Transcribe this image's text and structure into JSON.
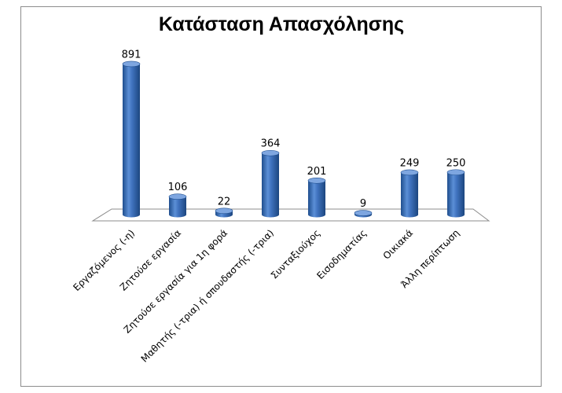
{
  "chart_data": {
    "type": "bar",
    "title": "Κατάσταση Απασχόλησης",
    "categories": [
      "Εργαζόμενος (-η)",
      "Ζητούσε εργασία",
      "Ζητούσε εργασία για 1η φορά",
      "Μαθητής (-τρια) ή σπουδαστής (-τρια)",
      "Συνταξιούχος",
      "Εισοδηματίας",
      "Οικιακά",
      "Άλλη περίπτωση"
    ],
    "values": [
      891,
      106,
      22,
      364,
      201,
      9,
      249,
      250
    ],
    "data_labels": [
      "891",
      "106",
      "22",
      "364",
      "201",
      "9",
      "249",
      "250"
    ],
    "xlabel": "",
    "ylabel": "",
    "ylim": [
      0,
      1000
    ],
    "grid": false,
    "legend": "none",
    "colors": {
      "bar": "#3f72be",
      "bar_dark": "#1f4e8e",
      "bar_light": "#7ea6e0",
      "floor": "#ffffff",
      "floor_edge": "#8c8c8c"
    }
  }
}
